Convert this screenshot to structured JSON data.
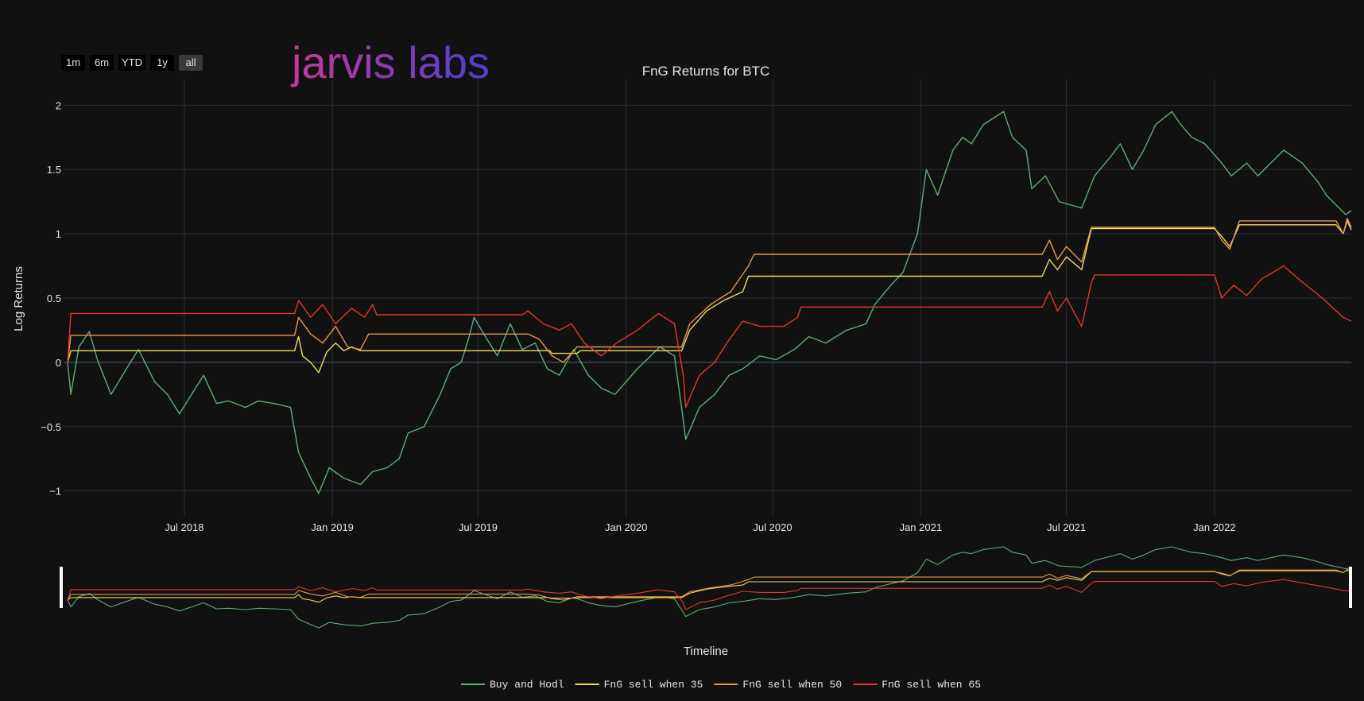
{
  "range_selector": {
    "buttons": [
      "1m",
      "6m",
      "YTD",
      "1y",
      "all"
    ],
    "active": "all"
  },
  "logo": {
    "text": "jarvis labs"
  },
  "colors": {
    "background": "#111111",
    "grid": "#2b2f38",
    "zero_line": "#2f3a4a",
    "buy_and_hodl": "#5fae73",
    "fng_35": "#f0dc5a",
    "fng_50": "#e99a45",
    "fng_65": "#e0392b",
    "logo_start": "#c4399a",
    "logo_end": "#4b3fd0"
  },
  "chart_data": {
    "type": "line",
    "title": "FnG Returns for BTC",
    "xlabel": "",
    "ylabel": "Log Returns",
    "rangeslider_title": "Timeline",
    "x_range": [
      "2018-02-01",
      "2022-06-20"
    ],
    "ylim": [
      -1.2,
      2.2
    ],
    "x_ticks": [
      {
        "date": "2018-07-01",
        "label": "Jul 2018"
      },
      {
        "date": "2019-01-01",
        "label": "Jan 2019"
      },
      {
        "date": "2019-07-01",
        "label": "Jul 2019"
      },
      {
        "date": "2020-01-01",
        "label": "Jan 2020"
      },
      {
        "date": "2020-07-01",
        "label": "Jul 2020"
      },
      {
        "date": "2021-01-01",
        "label": "Jan 2021"
      },
      {
        "date": "2021-07-01",
        "label": "Jul 2021"
      },
      {
        "date": "2022-01-01",
        "label": "Jan 2022"
      }
    ],
    "y_ticks": [
      {
        "value": 2,
        "label": "2"
      },
      {
        "value": 1.5,
        "label": "1.5"
      },
      {
        "value": 1,
        "label": "1"
      },
      {
        "value": 0.5,
        "label": "0.5"
      },
      {
        "value": 0,
        "label": "0"
      },
      {
        "value": -0.5,
        "label": "−0.5"
      },
      {
        "value": -1,
        "label": "−1"
      }
    ],
    "grid": true,
    "legend_position": "bottom-center",
    "series": [
      {
        "name": "Buy and Hodl",
        "points": [
          [
            "2018-02-06",
            0
          ],
          [
            "2018-02-10",
            -0.25
          ],
          [
            "2018-02-20",
            0.12
          ],
          [
            "2018-03-05",
            0.24
          ],
          [
            "2018-03-15",
            0.02
          ],
          [
            "2018-04-01",
            -0.25
          ],
          [
            "2018-04-20",
            -0.05
          ],
          [
            "2018-05-05",
            0.1
          ],
          [
            "2018-05-25",
            -0.15
          ],
          [
            "2018-06-10",
            -0.25
          ],
          [
            "2018-06-25",
            -0.4
          ],
          [
            "2018-07-10",
            -0.25
          ],
          [
            "2018-07-25",
            -0.1
          ],
          [
            "2018-08-10",
            -0.32
          ],
          [
            "2018-08-25",
            -0.3
          ],
          [
            "2018-09-15",
            -0.35
          ],
          [
            "2018-10-01",
            -0.3
          ],
          [
            "2018-10-20",
            -0.32
          ],
          [
            "2018-11-10",
            -0.35
          ],
          [
            "2018-11-20",
            -0.7
          ],
          [
            "2018-12-05",
            -0.9
          ],
          [
            "2018-12-15",
            -1.02
          ],
          [
            "2018-12-28",
            -0.82
          ],
          [
            "2019-01-15",
            -0.9
          ],
          [
            "2019-02-05",
            -0.95
          ],
          [
            "2019-02-20",
            -0.85
          ],
          [
            "2019-03-10",
            -0.82
          ],
          [
            "2019-03-25",
            -0.75
          ],
          [
            "2019-04-05",
            -0.55
          ],
          [
            "2019-04-25",
            -0.5
          ],
          [
            "2019-05-15",
            -0.25
          ],
          [
            "2019-05-28",
            -0.05
          ],
          [
            "2019-06-10",
            0.0
          ],
          [
            "2019-06-20",
            0.2
          ],
          [
            "2019-06-26",
            0.35
          ],
          [
            "2019-07-10",
            0.2
          ],
          [
            "2019-07-25",
            0.05
          ],
          [
            "2019-08-10",
            0.3
          ],
          [
            "2019-08-25",
            0.1
          ],
          [
            "2019-09-10",
            0.15
          ],
          [
            "2019-09-25",
            -0.05
          ],
          [
            "2019-10-10",
            -0.1
          ],
          [
            "2019-10-28",
            0.1
          ],
          [
            "2019-11-15",
            -0.1
          ],
          [
            "2019-12-01",
            -0.2
          ],
          [
            "2019-12-18",
            -0.25
          ],
          [
            "2020-01-15",
            -0.05
          ],
          [
            "2020-02-12",
            0.12
          ],
          [
            "2020-03-01",
            0.05
          ],
          [
            "2020-03-12",
            -0.45
          ],
          [
            "2020-03-15",
            -0.6
          ],
          [
            "2020-04-01",
            -0.35
          ],
          [
            "2020-04-20",
            -0.25
          ],
          [
            "2020-05-08",
            -0.1
          ],
          [
            "2020-05-25",
            -0.05
          ],
          [
            "2020-06-15",
            0.05
          ],
          [
            "2020-07-05",
            0.02
          ],
          [
            "2020-07-28",
            0.1
          ],
          [
            "2020-08-15",
            0.2
          ],
          [
            "2020-09-05",
            0.15
          ],
          [
            "2020-10-01",
            0.25
          ],
          [
            "2020-10-25",
            0.3
          ],
          [
            "2020-11-05",
            0.45
          ],
          [
            "2020-11-25",
            0.6
          ],
          [
            "2020-12-10",
            0.7
          ],
          [
            "2020-12-28",
            1.0
          ],
          [
            "2021-01-08",
            1.5
          ],
          [
            "2021-01-22",
            1.3
          ],
          [
            "2021-02-10",
            1.65
          ],
          [
            "2021-02-22",
            1.75
          ],
          [
            "2021-03-05",
            1.7
          ],
          [
            "2021-03-20",
            1.85
          ],
          [
            "2021-04-14",
            1.95
          ],
          [
            "2021-04-25",
            1.75
          ],
          [
            "2021-05-12",
            1.65
          ],
          [
            "2021-05-19",
            1.35
          ],
          [
            "2021-06-05",
            1.45
          ],
          [
            "2021-06-22",
            1.25
          ],
          [
            "2021-07-20",
            1.2
          ],
          [
            "2021-08-05",
            1.45
          ],
          [
            "2021-08-25",
            1.6
          ],
          [
            "2021-09-06",
            1.7
          ],
          [
            "2021-09-21",
            1.5
          ],
          [
            "2021-10-05",
            1.65
          ],
          [
            "2021-10-20",
            1.85
          ],
          [
            "2021-11-09",
            1.95
          ],
          [
            "2021-11-20",
            1.85
          ],
          [
            "2021-12-04",
            1.75
          ],
          [
            "2021-12-20",
            1.7
          ],
          [
            "2022-01-10",
            1.55
          ],
          [
            "2022-01-22",
            1.45
          ],
          [
            "2022-02-10",
            1.55
          ],
          [
            "2022-02-24",
            1.45
          ],
          [
            "2022-03-28",
            1.65
          ],
          [
            "2022-04-20",
            1.55
          ],
          [
            "2022-05-10",
            1.4
          ],
          [
            "2022-05-20",
            1.3
          ],
          [
            "2022-06-13",
            1.15
          ],
          [
            "2022-06-20",
            1.18
          ]
        ]
      },
      {
        "name": "FnG sell when 35",
        "points": [
          [
            "2018-02-06",
            0
          ],
          [
            "2018-02-10",
            0.09
          ],
          [
            "2018-11-15",
            0.09
          ],
          [
            "2018-11-20",
            0.2
          ],
          [
            "2018-11-25",
            0.05
          ],
          [
            "2018-12-05",
            0.0
          ],
          [
            "2018-12-15",
            -0.08
          ],
          [
            "2018-12-25",
            0.08
          ],
          [
            "2019-01-05",
            0.15
          ],
          [
            "2019-01-15",
            0.09
          ],
          [
            "2019-01-25",
            0.12
          ],
          [
            "2019-02-05",
            0.09
          ],
          [
            "2019-09-28",
            0.09
          ],
          [
            "2019-10-01",
            0.07
          ],
          [
            "2019-11-01",
            0.07
          ],
          [
            "2019-11-05",
            0.09
          ],
          [
            "2020-03-10",
            0.09
          ],
          [
            "2020-03-20",
            0.25
          ],
          [
            "2020-04-10",
            0.4
          ],
          [
            "2020-05-01",
            0.48
          ],
          [
            "2020-05-25",
            0.55
          ],
          [
            "2020-06-01",
            0.67
          ],
          [
            "2021-06-01",
            0.67
          ],
          [
            "2021-06-10",
            0.8
          ],
          [
            "2021-06-20",
            0.72
          ],
          [
            "2021-07-01",
            0.82
          ],
          [
            "2021-07-20",
            0.72
          ],
          [
            "2021-08-01",
            1.04
          ],
          [
            "2022-01-01",
            1.04
          ],
          [
            "2022-01-10",
            0.98
          ],
          [
            "2022-01-20",
            0.9
          ],
          [
            "2022-02-01",
            1.07
          ],
          [
            "2022-06-01",
            1.07
          ],
          [
            "2022-06-10",
            1.0
          ],
          [
            "2022-06-15",
            1.1
          ],
          [
            "2022-06-20",
            1.03
          ]
        ]
      },
      {
        "name": "FnG sell when 50",
        "points": [
          [
            "2018-02-06",
            0
          ],
          [
            "2018-02-10",
            0.21
          ],
          [
            "2018-11-15",
            0.21
          ],
          [
            "2018-11-20",
            0.35
          ],
          [
            "2018-12-05",
            0.22
          ],
          [
            "2018-12-20",
            0.15
          ],
          [
            "2019-01-05",
            0.28
          ],
          [
            "2019-01-20",
            0.12
          ],
          [
            "2019-02-05",
            0.1
          ],
          [
            "2019-02-15",
            0.22
          ],
          [
            "2019-09-01",
            0.22
          ],
          [
            "2019-09-15",
            0.18
          ],
          [
            "2019-10-01",
            0.05
          ],
          [
            "2019-10-15",
            0.0
          ],
          [
            "2019-11-01",
            0.12
          ],
          [
            "2020-03-10",
            0.12
          ],
          [
            "2020-03-20",
            0.3
          ],
          [
            "2020-04-15",
            0.45
          ],
          [
            "2020-05-10",
            0.55
          ],
          [
            "2020-06-01",
            0.75
          ],
          [
            "2020-06-08",
            0.84
          ],
          [
            "2021-06-01",
            0.84
          ],
          [
            "2021-06-10",
            0.95
          ],
          [
            "2021-06-20",
            0.8
          ],
          [
            "2021-07-01",
            0.9
          ],
          [
            "2021-07-20",
            0.78
          ],
          [
            "2021-08-01",
            1.05
          ],
          [
            "2022-01-01",
            1.05
          ],
          [
            "2022-01-10",
            0.95
          ],
          [
            "2022-01-20",
            0.88
          ],
          [
            "2022-02-01",
            1.1
          ],
          [
            "2022-06-01",
            1.1
          ],
          [
            "2022-06-10",
            1.0
          ],
          [
            "2022-06-15",
            1.12
          ],
          [
            "2022-06-20",
            1.05
          ]
        ]
      },
      {
        "name": "FnG sell when 65",
        "points": [
          [
            "2018-02-06",
            0
          ],
          [
            "2018-02-10",
            0.38
          ],
          [
            "2018-11-15",
            0.38
          ],
          [
            "2018-11-20",
            0.48
          ],
          [
            "2018-12-05",
            0.35
          ],
          [
            "2018-12-20",
            0.45
          ],
          [
            "2019-01-05",
            0.3
          ],
          [
            "2019-01-25",
            0.42
          ],
          [
            "2019-02-10",
            0.35
          ],
          [
            "2019-02-20",
            0.45
          ],
          [
            "2019-02-25",
            0.37
          ],
          [
            "2019-08-25",
            0.37
          ],
          [
            "2019-09-01",
            0.4
          ],
          [
            "2019-09-20",
            0.3
          ],
          [
            "2019-10-10",
            0.25
          ],
          [
            "2019-10-25",
            0.3
          ],
          [
            "2019-11-10",
            0.15
          ],
          [
            "2019-12-01",
            0.05
          ],
          [
            "2019-12-20",
            0.15
          ],
          [
            "2020-01-15",
            0.25
          ],
          [
            "2020-02-10",
            0.38
          ],
          [
            "2020-03-01",
            0.3
          ],
          [
            "2020-03-12",
            -0.1
          ],
          [
            "2020-03-15",
            -0.35
          ],
          [
            "2020-04-01",
            -0.1
          ],
          [
            "2020-04-20",
            0.0
          ],
          [
            "2020-05-05",
            0.15
          ],
          [
            "2020-05-25",
            0.32
          ],
          [
            "2020-06-15",
            0.28
          ],
          [
            "2020-07-15",
            0.28
          ],
          [
            "2020-08-01",
            0.35
          ],
          [
            "2020-08-05",
            0.43
          ],
          [
            "2021-06-01",
            0.43
          ],
          [
            "2021-06-10",
            0.55
          ],
          [
            "2021-06-20",
            0.4
          ],
          [
            "2021-07-01",
            0.5
          ],
          [
            "2021-07-20",
            0.28
          ],
          [
            "2021-08-01",
            0.62
          ],
          [
            "2021-08-05",
            0.68
          ],
          [
            "2022-01-01",
            0.68
          ],
          [
            "2022-01-10",
            0.5
          ],
          [
            "2022-01-25",
            0.6
          ],
          [
            "2022-02-10",
            0.52
          ],
          [
            "2022-03-01",
            0.65
          ],
          [
            "2022-03-28",
            0.75
          ],
          [
            "2022-04-15",
            0.65
          ],
          [
            "2022-05-05",
            0.55
          ],
          [
            "2022-05-15",
            0.5
          ],
          [
            "2022-06-10",
            0.35
          ],
          [
            "2022-06-20",
            0.32
          ]
        ]
      }
    ]
  }
}
